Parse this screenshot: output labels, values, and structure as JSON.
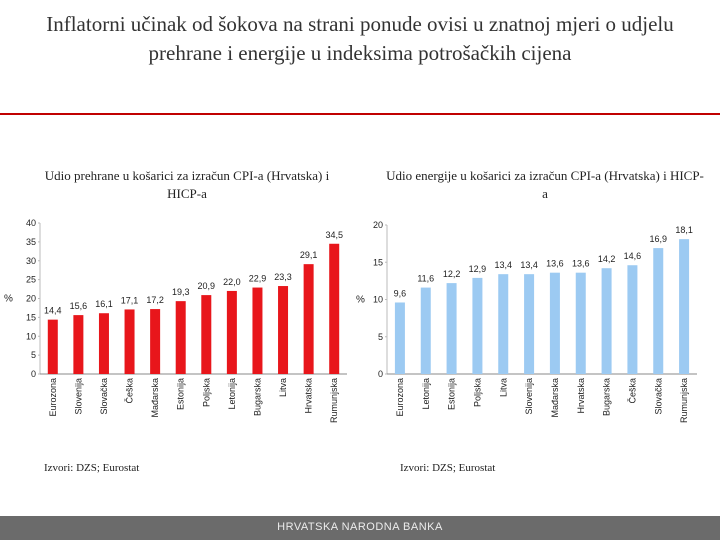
{
  "page": {
    "title": "Inflatorni učinak od šokova na strani ponude ovisi u znatnoj mjeri  o udjelu prehrane i energije u indeksima potrošačkih cijena",
    "footer": "HRVATSKA NARODNA BANKA"
  },
  "charts": {
    "left": {
      "subtitle": "Udio prehrane u košarici za izračun CPI-a (Hrvatska) i HICP-a",
      "source": "Izvori: DZS; Eurostat"
    },
    "right": {
      "subtitle": "Udio energije u košarici za izračun CPI-a (Hrvatska) i HICP-a",
      "source": "Izvori: DZS; Eurostat"
    }
  },
  "chart_data": [
    {
      "type": "bar",
      "title": "Udio prehrane u košarici za izračun CPI-a (Hrvatska) i HICP-a",
      "ylabel": "%",
      "ylim": [
        0,
        40
      ],
      "yticks": [
        0,
        5,
        10,
        15,
        20,
        25,
        30,
        35,
        40
      ],
      "color": "#e8161b",
      "categories": [
        "Eurozona",
        "Slovenija",
        "Slovačka",
        "Češka",
        "Mađarska",
        "Estonija",
        "Poljska",
        "Letonija",
        "Bugarska",
        "Litva",
        "Hrvatska",
        "Rumunjska"
      ],
      "values": [
        14.4,
        15.6,
        16.1,
        17.1,
        17.2,
        19.3,
        20.9,
        22.0,
        22.9,
        23.3,
        29.1,
        34.5
      ],
      "labels": [
        "14,4",
        "15,6",
        "16,1",
        "17,1",
        "17,2",
        "19,3",
        "20,9",
        "22,0",
        "22,9",
        "23,3",
        "29,1",
        "34,5"
      ],
      "grid": false
    },
    {
      "type": "bar",
      "title": "Udio energije u košarici za izračun CPI-a (Hrvatska) i HICP-a",
      "ylabel": "%",
      "ylim": [
        0,
        20
      ],
      "yticks": [
        0,
        5,
        10,
        15,
        20
      ],
      "color": "#9ccaf2",
      "categories": [
        "Eurozona",
        "Letonija",
        "Estonija",
        "Poljska",
        "Litva",
        "Slovenija",
        "Mađarska",
        "Hrvatska",
        "Bugarska",
        "Češka",
        "Slovačka",
        "Rumunjska"
      ],
      "values": [
        9.6,
        11.6,
        12.2,
        12.9,
        13.4,
        13.4,
        13.6,
        13.6,
        14.2,
        14.6,
        16.9,
        18.1
      ],
      "labels": [
        "9,6",
        "11,6",
        "12,2",
        "12,9",
        "13,4",
        "13,4",
        "13,6",
        "13,6",
        "14,2",
        "14,6",
        "16,9",
        "18,1"
      ],
      "grid": false
    }
  ]
}
